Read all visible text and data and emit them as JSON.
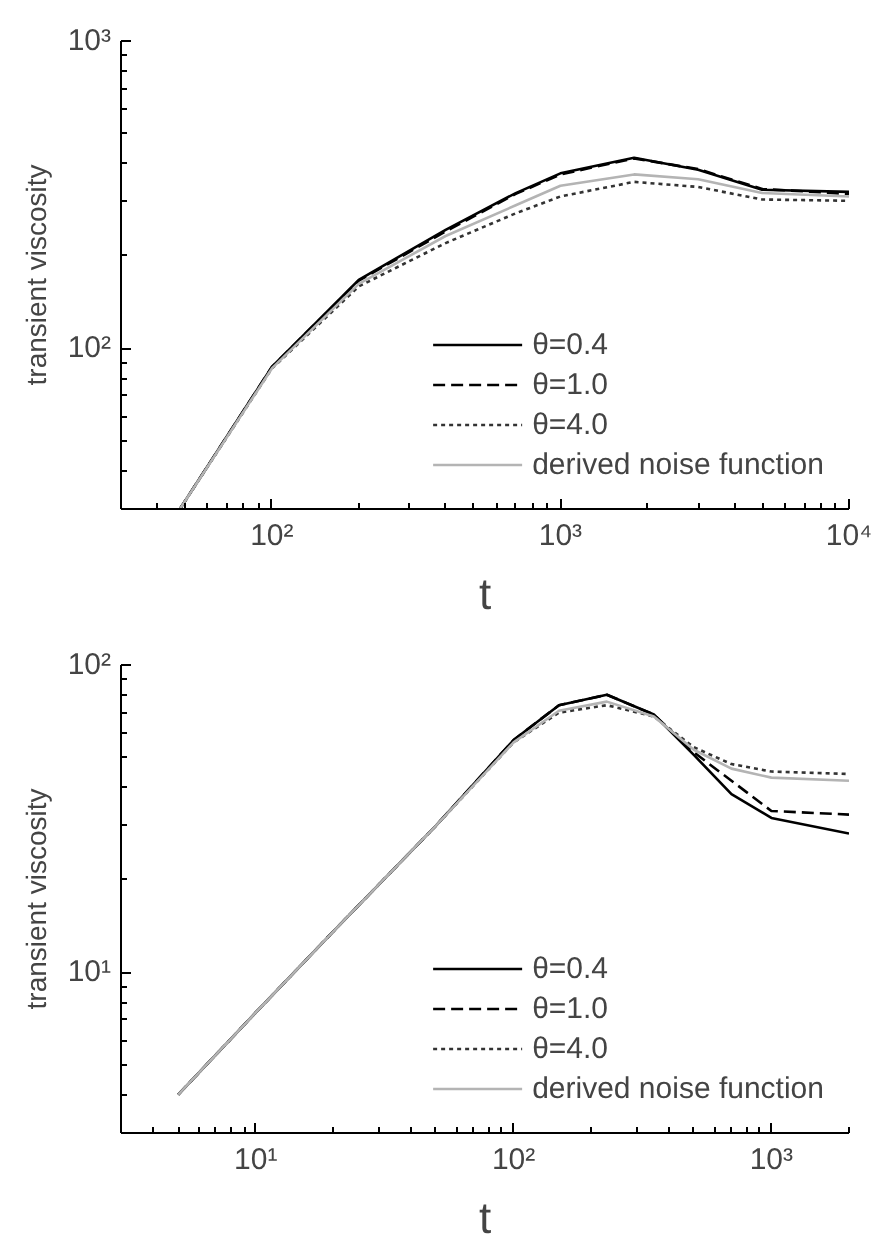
{
  "chart_data": [
    {
      "type": "line",
      "xlabel": "t",
      "ylabel": "transient viscosity",
      "log": "xy",
      "grid": false,
      "legend": "bottom right",
      "xlim": [
        30,
        10000
      ],
      "ylim": [
        30,
        1000
      ],
      "xticks": [
        {
          "value": 100,
          "label": "10²"
        },
        {
          "value": 1000,
          "label": "10³"
        },
        {
          "value": 10000,
          "label": "10⁴"
        }
      ],
      "yticks": [
        {
          "value": 100,
          "label": "10²"
        },
        {
          "value": 1000,
          "label": "10³"
        }
      ],
      "series": [
        {
          "name": "θ=0.4",
          "color": "#000000",
          "line_style": "solid",
          "x": [
            48,
            100,
            200,
            400,
            700,
            1000,
            1800,
            3000,
            5000,
            10000
          ],
          "values": [
            30,
            87,
            167,
            243,
            320,
            371,
            417,
            381,
            328,
            323
          ]
        },
        {
          "name": "θ=1.0",
          "color": "#000000",
          "line_style": "dashed",
          "x": [
            48,
            100,
            200,
            400,
            700,
            1000,
            1800,
            3000,
            5000,
            10000
          ],
          "values": [
            30,
            87,
            166,
            240,
            318,
            368,
            415,
            383,
            330,
            318
          ]
        },
        {
          "name": "θ=4.0",
          "color": "#333333",
          "line_style": "dotted",
          "x": [
            48,
            100,
            200,
            400,
            700,
            1000,
            1800,
            3000,
            5000,
            10000
          ],
          "values": [
            30,
            86,
            159,
            220,
            275,
            312,
            348,
            335,
            305,
            302
          ]
        },
        {
          "name": "derived noise function",
          "color": "#b4b4b4",
          "line_style": "solid",
          "x": [
            48,
            100,
            200,
            400,
            700,
            1000,
            1800,
            3000,
            5000,
            10000
          ],
          "values": [
            30,
            86,
            162,
            232,
            292,
            338,
            368,
            355,
            320,
            312
          ]
        }
      ]
    },
    {
      "type": "line",
      "xlabel": "t",
      "ylabel": "transient viscosity",
      "log": "xy",
      "grid": false,
      "legend": "bottom right",
      "xlim": [
        3,
        2000
      ],
      "ylim": [
        3,
        100
      ],
      "xticks": [
        {
          "value": 10,
          "label": "10¹"
        },
        {
          "value": 100,
          "label": "10²"
        },
        {
          "value": 1000,
          "label": "10³"
        }
      ],
      "yticks": [
        {
          "value": 10,
          "label": "10¹"
        },
        {
          "value": 100,
          "label": "10²"
        }
      ],
      "series": [
        {
          "name": "θ=0.4",
          "color": "#000000",
          "line_style": "solid",
          "x": [
            5,
            10,
            20,
            50,
            100,
            150,
            230,
            350,
            500,
            700,
            1000,
            2000
          ],
          "values": [
            4,
            7.4,
            13.6,
            30,
            57,
            74,
            80,
            69,
            51,
            38,
            31.8,
            28.3
          ]
        },
        {
          "name": "θ=1.0",
          "color": "#000000",
          "line_style": "dashed",
          "x": [
            5,
            10,
            20,
            50,
            100,
            150,
            230,
            350,
            500,
            700,
            1000,
            2000
          ],
          "values": [
            4,
            7.4,
            13.6,
            30,
            57,
            74,
            80,
            69,
            52,
            42,
            33.5,
            32.6
          ]
        },
        {
          "name": "θ=4.0",
          "color": "#333333",
          "line_style": "dotted",
          "x": [
            5,
            10,
            20,
            50,
            100,
            150,
            230,
            350,
            500,
            700,
            1000,
            2000
          ],
          "values": [
            4,
            7.4,
            13.6,
            30,
            56,
            70,
            74,
            68,
            54,
            47.6,
            45,
            44.2
          ]
        },
        {
          "name": "derived noise function",
          "color": "#b4b4b4",
          "line_style": "solid",
          "x": [
            5,
            10,
            20,
            50,
            100,
            150,
            230,
            350,
            500,
            700,
            1000,
            2000
          ],
          "values": [
            4,
            7.4,
            13.6,
            30,
            56,
            71,
            76,
            68,
            53,
            46,
            43,
            42
          ]
        }
      ]
    }
  ]
}
